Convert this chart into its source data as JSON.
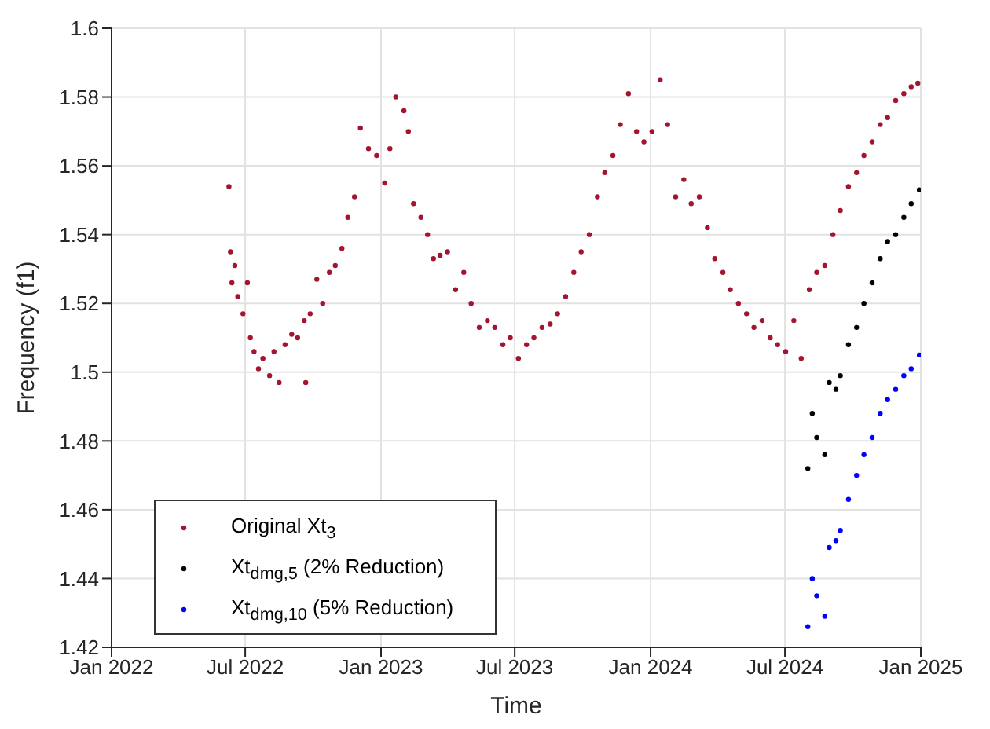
{
  "chart_data": {
    "type": "scatter",
    "xlabel": "Time",
    "ylabel": "Frequency (f1)",
    "xlim": [
      "2022-01-01",
      "2025-01-01"
    ],
    "xticks": [
      {
        "value": "2022-01-01",
        "label": "Jan 2022"
      },
      {
        "value": "2022-07-01",
        "label": "Jul 2022"
      },
      {
        "value": "2023-01-01",
        "label": "Jan 2023"
      },
      {
        "value": "2023-07-01",
        "label": "Jul 2023"
      },
      {
        "value": "2024-01-01",
        "label": "Jan 2024"
      },
      {
        "value": "2024-07-01",
        "label": "Jul 2024"
      },
      {
        "value": "2025-01-01",
        "label": "Jan 2025"
      }
    ],
    "ylim": [
      1.42,
      1.6
    ],
    "yticks": [
      1.42,
      1.44,
      1.46,
      1.48,
      1.5,
      1.52,
      1.54,
      1.56,
      1.58,
      1.6
    ],
    "grid": true,
    "legend": "bottom left",
    "marker": "circle",
    "series": [
      {
        "name": "Original Xt$_{3}$",
        "color": "#a2142f",
        "x": [
          "2022-06-09",
          "2022-06-11",
          "2022-06-13",
          "2022-06-17",
          "2022-06-21",
          "2022-06-28",
          "2022-07-04",
          "2022-07-08",
          "2022-07-13",
          "2022-07-19",
          "2022-07-25",
          "2022-08-03",
          "2022-08-09",
          "2022-08-16",
          "2022-08-24",
          "2022-09-02",
          "2022-09-10",
          "2022-09-19",
          "2022-09-21",
          "2022-09-27",
          "2022-10-06",
          "2022-10-14",
          "2022-10-23",
          "2022-10-31",
          "2022-11-09",
          "2022-11-17",
          "2022-11-26",
          "2022-12-04",
          "2022-12-15",
          "2022-12-26",
          "2023-01-06",
          "2023-01-13",
          "2023-01-21",
          "2023-02-01",
          "2023-02-07",
          "2023-02-14",
          "2023-02-24",
          "2023-03-05",
          "2023-03-13",
          "2023-03-22",
          "2023-04-01",
          "2023-04-12",
          "2023-04-23",
          "2023-05-03",
          "2023-05-14",
          "2023-05-25",
          "2023-06-04",
          "2023-06-15",
          "2023-06-25",
          "2023-07-06",
          "2023-07-17",
          "2023-07-27",
          "2023-08-07",
          "2023-08-18",
          "2023-08-28",
          "2023-09-08",
          "2023-09-19",
          "2023-09-29",
          "2023-10-10",
          "2023-10-21",
          "2023-10-31",
          "2023-11-11",
          "2023-11-21",
          "2023-12-02",
          "2023-12-13",
          "2023-12-23",
          "2024-01-03",
          "2024-01-14",
          "2024-01-24",
          "2024-02-04",
          "2024-02-15",
          "2024-02-25",
          "2024-03-07",
          "2024-03-18",
          "2024-03-28",
          "2024-04-08",
          "2024-04-18",
          "2024-04-29",
          "2024-05-10",
          "2024-05-20",
          "2024-05-31",
          "2024-06-11",
          "2024-06-21",
          "2024-07-02",
          "2024-07-13",
          "2024-07-23",
          "2024-08-03",
          "2024-08-13",
          "2024-08-24",
          "2024-09-04",
          "2024-09-14",
          "2024-09-25",
          "2024-10-06",
          "2024-10-16",
          "2024-10-27",
          "2024-11-07",
          "2024-11-17",
          "2024-11-28",
          "2024-12-09",
          "2024-12-19",
          "2024-12-28"
        ],
        "values": [
          1.554,
          1.535,
          1.526,
          1.531,
          1.522,
          1.517,
          1.526,
          1.51,
          1.506,
          1.501,
          1.504,
          1.499,
          1.506,
          1.497,
          1.508,
          1.511,
          1.51,
          1.515,
          1.497,
          1.517,
          1.527,
          1.52,
          1.529,
          1.531,
          1.536,
          1.545,
          1.551,
          1.571,
          1.565,
          1.563,
          1.555,
          1.565,
          1.58,
          1.576,
          1.57,
          1.549,
          1.545,
          1.54,
          1.533,
          1.534,
          1.535,
          1.524,
          1.529,
          1.52,
          1.513,
          1.515,
          1.513,
          1.508,
          1.51,
          1.504,
          1.508,
          1.51,
          1.513,
          1.514,
          1.517,
          1.522,
          1.529,
          1.535,
          1.54,
          1.551,
          1.558,
          1.563,
          1.572,
          1.581,
          1.57,
          1.567,
          1.57,
          1.585,
          1.572,
          1.551,
          1.556,
          1.549,
          1.551,
          1.542,
          1.533,
          1.529,
          1.524,
          1.52,
          1.517,
          1.513,
          1.515,
          1.51,
          1.508,
          1.506,
          1.515,
          1.504,
          1.524,
          1.529,
          1.531,
          1.54,
          1.547,
          1.554,
          1.558,
          1.563,
          1.567,
          1.572,
          1.574,
          1.579,
          1.581,
          1.583,
          1.584
        ]
      },
      {
        "name": "Xt$_{dmg,5}$ (2% Reduction)",
        "color": "#000000",
        "x": [
          "2024-08-01",
          "2024-08-07",
          "2024-08-13",
          "2024-08-24",
          "2024-08-30",
          "2024-09-08",
          "2024-09-14",
          "2024-09-25",
          "2024-10-06",
          "2024-10-16",
          "2024-10-27",
          "2024-11-07",
          "2024-11-17",
          "2024-11-28",
          "2024-12-09",
          "2024-12-19",
          "2024-12-30"
        ],
        "values": [
          1.472,
          1.488,
          1.481,
          1.476,
          1.497,
          1.495,
          1.499,
          1.508,
          1.513,
          1.52,
          1.526,
          1.533,
          1.538,
          1.54,
          1.545,
          1.549,
          1.553
        ]
      },
      {
        "name": "Xt$_{dmg,10}$ (5% Reduction)",
        "color": "#0000ff",
        "x": [
          "2024-08-01",
          "2024-08-07",
          "2024-08-13",
          "2024-08-24",
          "2024-08-30",
          "2024-09-08",
          "2024-09-14",
          "2024-09-25",
          "2024-10-06",
          "2024-10-16",
          "2024-10-27",
          "2024-11-07",
          "2024-11-17",
          "2024-11-28",
          "2024-12-09",
          "2024-12-19",
          "2024-12-30"
        ],
        "values": [
          1.426,
          1.44,
          1.435,
          1.429,
          1.449,
          1.451,
          1.454,
          1.463,
          1.47,
          1.476,
          1.481,
          1.488,
          1.492,
          1.495,
          1.499,
          1.501,
          1.505
        ]
      }
    ]
  }
}
